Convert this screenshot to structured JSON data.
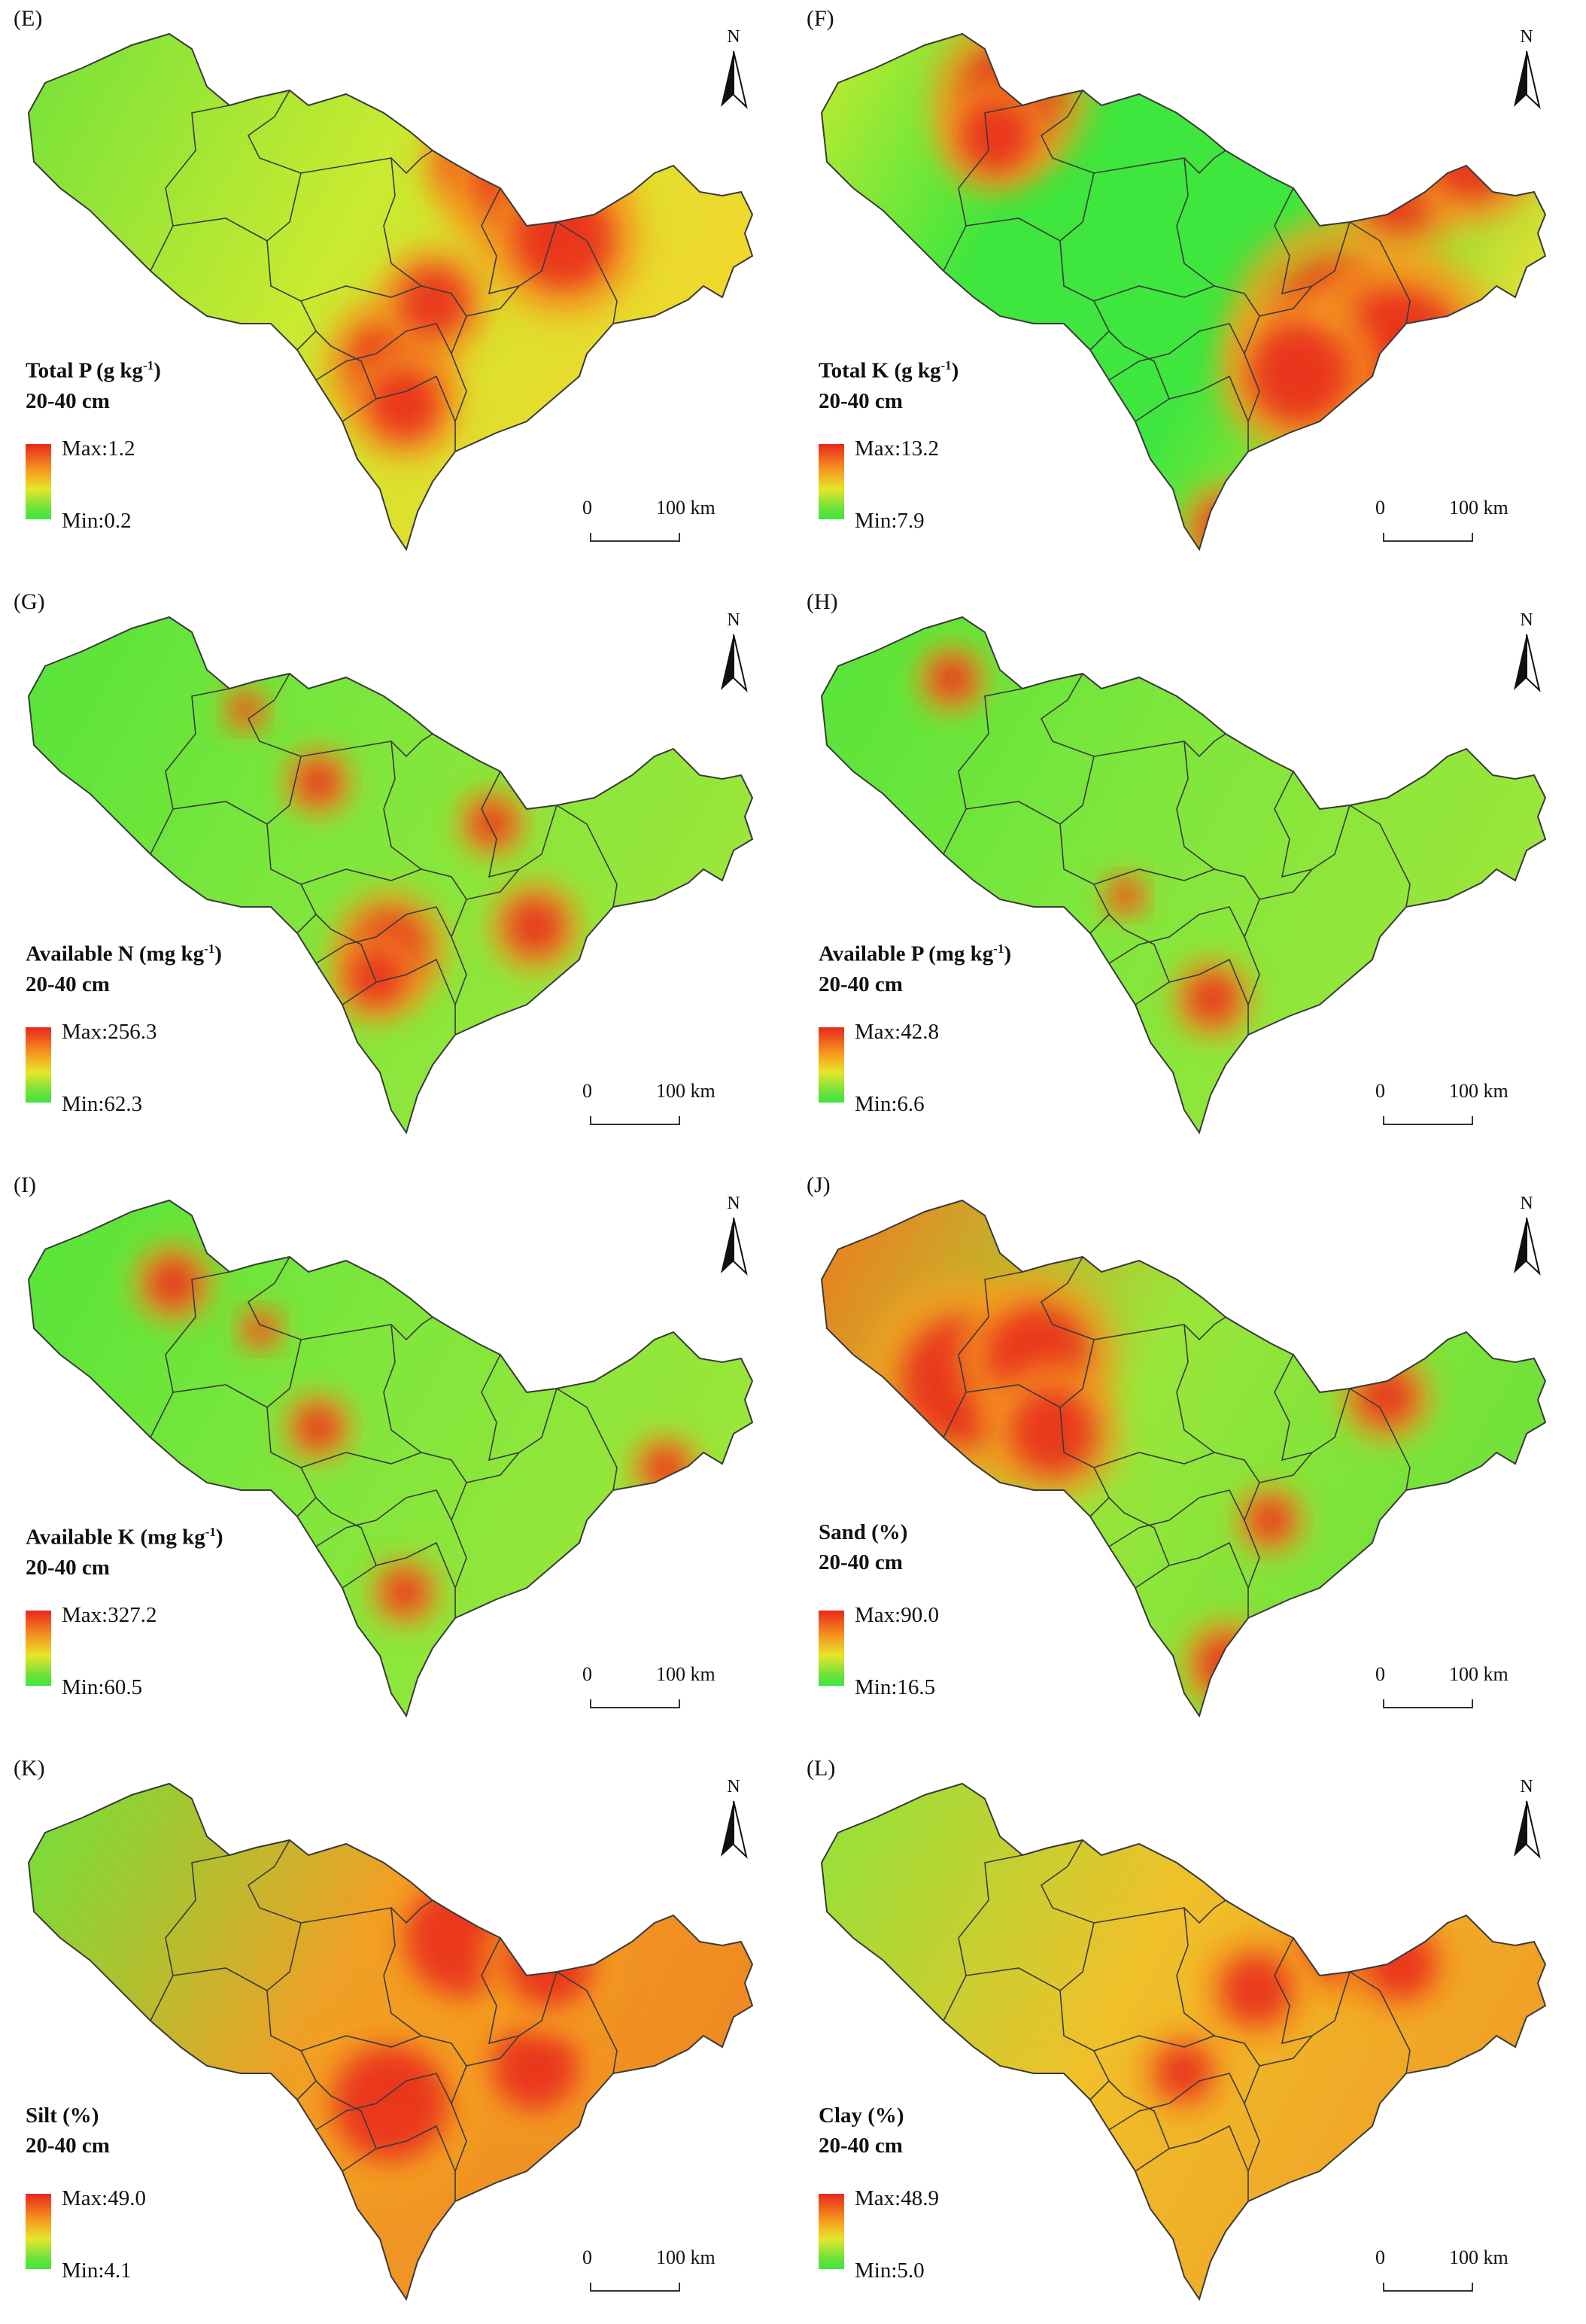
{
  "panels": [
    {
      "letter": "(E)",
      "title_main": "Total P (g kg",
      "title_sup": "-1",
      "title_close": ")",
      "depth": "20-40 cm",
      "max": "Max:1.2",
      "min": "Min:0.2",
      "theme": "mixed",
      "hot": [
        [
          0.62,
          0.25,
          0.05
        ],
        [
          0.5,
          0.64,
          0.06
        ],
        [
          0.52,
          0.72,
          0.05
        ],
        [
          0.7,
          0.3,
          0.08
        ],
        [
          0.74,
          0.4,
          0.07
        ],
        [
          0.56,
          0.52,
          0.05
        ]
      ]
    },
    {
      "letter": "(F)",
      "title_main": "Total K (g kg",
      "title_sup": "-1",
      "title_close": ")",
      "depth": "20-40 cm",
      "max": "Max:13.2",
      "min": "Min:7.9",
      "theme": "greenK",
      "hot": [
        [
          0.26,
          0.12,
          0.07
        ],
        [
          0.24,
          0.2,
          0.05
        ],
        [
          0.72,
          0.58,
          0.1
        ],
        [
          0.8,
          0.62,
          0.09
        ],
        [
          0.66,
          0.66,
          0.07
        ],
        [
          0.8,
          0.3,
          0.06
        ],
        [
          0.56,
          0.96,
          0.04
        ],
        [
          0.9,
          0.24,
          0.06
        ]
      ]
    },
    {
      "letter": "(G)",
      "title_main": "Available N (mg kg",
      "title_sup": "-1",
      "title_close": ")",
      "depth": "20-40 cm",
      "max": "Max:256.3",
      "min": "Min:62.3",
      "theme": "green",
      "hot": [
        [
          0.5,
          0.64,
          0.05
        ],
        [
          0.48,
          0.7,
          0.04
        ],
        [
          0.7,
          0.6,
          0.04
        ],
        [
          0.64,
          0.4,
          0.03
        ],
        [
          0.4,
          0.32,
          0.03
        ],
        [
          0.3,
          0.18,
          0.02
        ]
      ]
    },
    {
      "letter": "(H)",
      "title_main": "Available P (mg kg",
      "title_sup": "-1",
      "title_close": ")",
      "depth": "20-40 cm",
      "max": "Max:42.8",
      "min": "Min:6.6",
      "theme": "green",
      "hot": [
        [
          0.54,
          0.74,
          0.035
        ],
        [
          0.18,
          0.12,
          0.03
        ],
        [
          0.42,
          0.54,
          0.02
        ]
      ]
    },
    {
      "letter": "(I)",
      "title_main": "Available K (mg kg",
      "title_sup": "-1",
      "title_close": ")",
      "depth": "20-40 cm",
      "max": "Max:327.2",
      "min": "Min:60.5",
      "theme": "green",
      "hot": [
        [
          0.2,
          0.16,
          0.035
        ],
        [
          0.4,
          0.44,
          0.03
        ],
        [
          0.52,
          0.76,
          0.03
        ],
        [
          0.88,
          0.52,
          0.03
        ],
        [
          0.32,
          0.25,
          0.02
        ]
      ]
    },
    {
      "letter": "(J)",
      "title_main": "Sand (%)",
      "title_sup": "",
      "title_close": "",
      "depth": "20-40 cm",
      "max": "Max:90.0",
      "min": "Min:16.5",
      "theme": "sand",
      "hot": [
        [
          0.2,
          0.35,
          0.09
        ],
        [
          0.3,
          0.3,
          0.07
        ],
        [
          0.32,
          0.45,
          0.06
        ],
        [
          0.78,
          0.38,
          0.04
        ],
        [
          0.56,
          0.9,
          0.04
        ],
        [
          0.62,
          0.62,
          0.03
        ]
      ]
    },
    {
      "letter": "(K)",
      "title_main": "Silt (%)",
      "title_sup": "",
      "title_close": "",
      "depth": "20-40 cm",
      "max": "Max:49.0",
      "min": "Min:4.1",
      "theme": "silt",
      "hot": [
        [
          0.6,
          0.3,
          0.08
        ],
        [
          0.5,
          0.62,
          0.08
        ],
        [
          0.7,
          0.55,
          0.06
        ],
        [
          0.72,
          0.35,
          0.06
        ]
      ]
    },
    {
      "letter": "(L)",
      "title_main": "Clay (%)",
      "title_sup": "",
      "title_close": "",
      "depth": "20-40 cm",
      "max": "Max:48.9",
      "min": "Min:5.0",
      "theme": "clay",
      "hot": [
        [
          0.72,
          0.3,
          0.06
        ],
        [
          0.8,
          0.35,
          0.05
        ],
        [
          0.6,
          0.4,
          0.05
        ],
        [
          0.5,
          0.56,
          0.04
        ]
      ]
    }
  ],
  "north_label": "N",
  "scale_zero": "0",
  "scale_distance": "100 km",
  "colors": {
    "high": "#e8281e",
    "mid": "#e6e62a",
    "low": "#3ee63e",
    "border": "#3a3a3a"
  }
}
